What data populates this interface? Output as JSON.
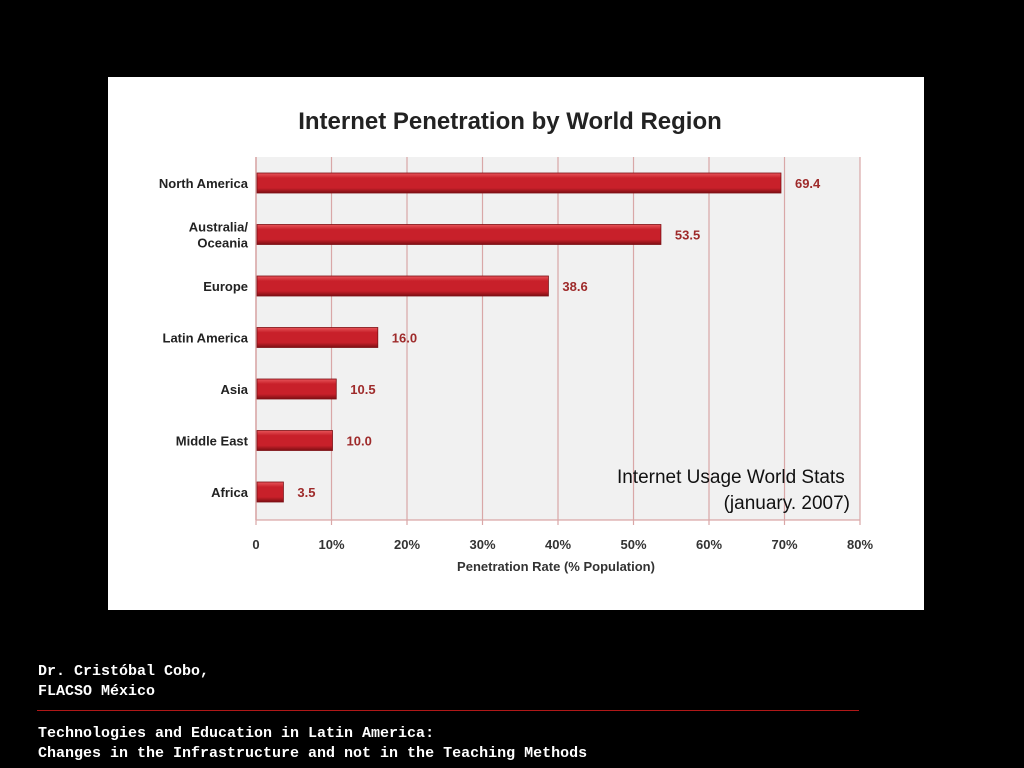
{
  "chart_data": {
    "type": "bar",
    "orientation": "horizontal",
    "title": "Internet Penetration by World Region",
    "categories": [
      [
        "North America"
      ],
      [
        "Australia/",
        "Oceania"
      ],
      [
        "Europe"
      ],
      [
        "Latin America"
      ],
      [
        "Asia"
      ],
      [
        "Middle East"
      ],
      [
        "Africa"
      ]
    ],
    "values": [
      69.4,
      53.5,
      38.6,
      16.0,
      10.5,
      10.0,
      3.5
    ],
    "value_labels": [
      "69.4",
      "53.5",
      "38.6",
      "16.0",
      "10.5",
      "10.0",
      "3.5"
    ],
    "xlabel": "Penetration Rate (% Population)",
    "ylabel": "",
    "xlim": [
      0,
      80
    ],
    "xticks": [
      0,
      10,
      20,
      30,
      40,
      50,
      60,
      70,
      80
    ],
    "xtick_labels": [
      "0",
      "10%",
      "20%",
      "30%",
      "40%",
      "50%",
      "60%",
      "70%",
      "80%"
    ],
    "grid": true,
    "annotation": [
      "Internet Usage World Stats",
      "(january. 2007)"
    ],
    "colors": {
      "bar": "#c8202a",
      "bar_highlight": "#e8555a",
      "bar_shadow": "#7d0f14",
      "value_label": "#9e2a2a",
      "gridline": "#d9a7a7",
      "plot_bg": "#f1f1f1"
    }
  },
  "footer": {
    "author": "Dr. Cristóbal Cobo,",
    "affiliation": "FLACSO México",
    "title_line1": "Technologies and Education in Latin America:",
    "title_line2": "Changes in the Infrastructure and not in the Teaching Methods"
  }
}
